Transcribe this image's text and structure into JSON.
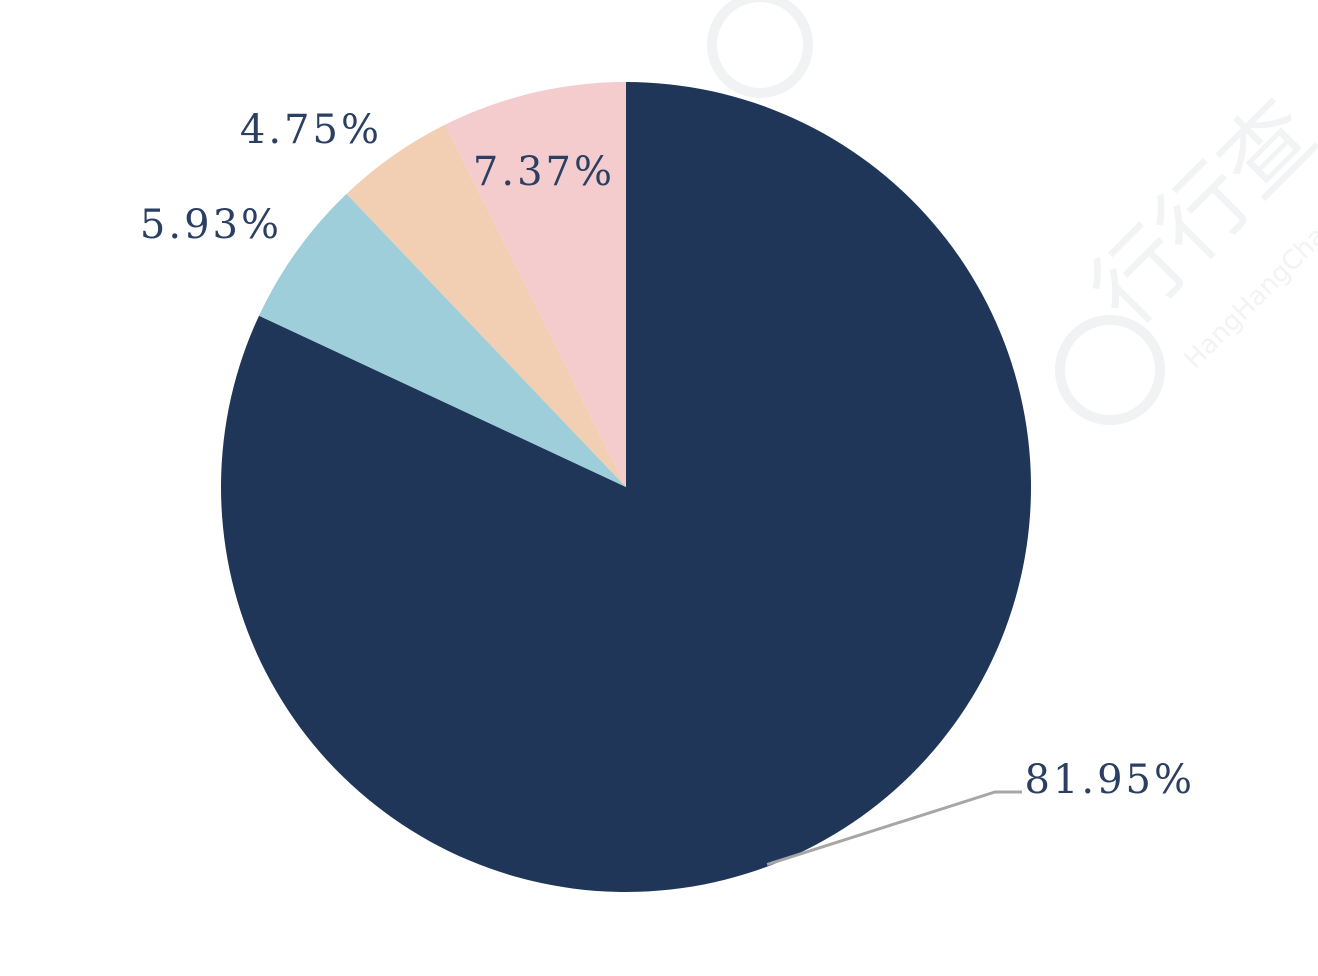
{
  "watermark": {
    "text": "行行查",
    "sub_text": "HangHangCha"
  },
  "chart_data": {
    "type": "pie",
    "start_angle_deg": 0,
    "direction": "clockwise",
    "slices": [
      {
        "label": "81.95%",
        "value": 81.95,
        "color": "#1f3659"
      },
      {
        "label": "5.93%",
        "value": 5.93,
        "color": "#9fcedb"
      },
      {
        "label": "4.75%",
        "value": 4.75,
        "color": "#f2ceb2"
      },
      {
        "label": "7.37%",
        "value": 7.37,
        "color": "#f5cccd"
      }
    ]
  }
}
